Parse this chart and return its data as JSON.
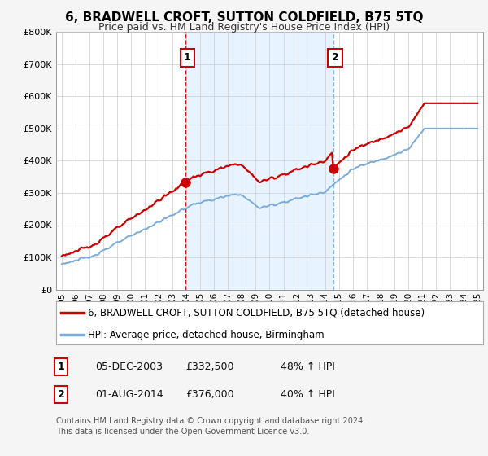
{
  "title": "6, BRADWELL CROFT, SUTTON COLDFIELD, B75 5TQ",
  "subtitle": "Price paid vs. HM Land Registry's House Price Index (HPI)",
  "legend_line1": "6, BRADWELL CROFT, SUTTON COLDFIELD, B75 5TQ (detached house)",
  "legend_line2": "HPI: Average price, detached house, Birmingham",
  "transaction1_date": "05-DEC-2003",
  "transaction1_price": 332500,
  "transaction1_pct": "48% ↑ HPI",
  "transaction1_x": 2003.92,
  "transaction2_date": "01-AUG-2014",
  "transaction2_price": 376000,
  "transaction2_pct": "40% ↑ HPI",
  "transaction2_x": 2014.58,
  "footer1": "Contains HM Land Registry data © Crown copyright and database right 2024.",
  "footer2": "This data is licensed under the Open Government Licence v3.0.",
  "red_color": "#cc0000",
  "blue_color": "#7aabdb",
  "shading_color": "#ddeeff",
  "background_color": "#f5f5f5",
  "plot_bg_color": "#ffffff",
  "grid_color": "#cccccc",
  "ylim": [
    0,
    800000
  ],
  "xlim": [
    1994.6,
    2025.4
  ]
}
